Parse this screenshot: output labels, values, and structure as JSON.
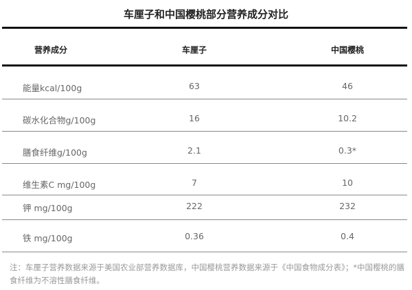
{
  "title": "车厘子和中国樱桃部分营养成分对比",
  "headers": [
    "营养成分",
    "车厘子",
    "中国樱桃"
  ],
  "rows": [
    [
      "能量kcal/100g",
      "63",
      "46"
    ],
    [
      "碳水化合物g/100g",
      "16",
      "10.2"
    ],
    [
      "膳食纤维g/100g",
      "2.1",
      "0.3*"
    ],
    [
      "维生素C mg/100g",
      "7",
      "10"
    ],
    [
      "钾 mg/100g",
      "222",
      "232"
    ],
    [
      "铁 mg/100g",
      "0.36",
      "0.4"
    ]
  ],
  "note": "注：车厘子营养数据来源于美国农业部营养数据库，中国樱桃营养数据来源于《中国食物成分表》；*中国樱桃的膳食纤维为不溶性膳食纤维。"
}
